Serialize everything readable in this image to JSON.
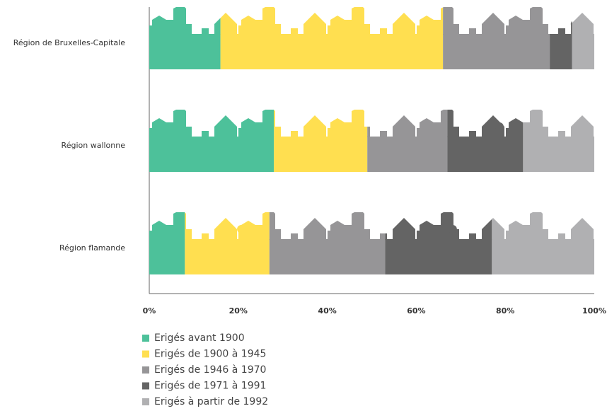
{
  "chart_data": {
    "type": "stacked-bar-horizontal",
    "categories": [
      "Région de Bruxelles-Capitale",
      "Région wallonne",
      "Région flamande"
    ],
    "series": [
      {
        "name": "Erigés avant 1900",
        "color": "#4dc19a",
        "values": [
          16,
          28,
          8
        ]
      },
      {
        "name": "Erigés de 1900 à 1945",
        "color": "#ffdf50",
        "values": [
          50,
          21,
          19
        ]
      },
      {
        "name": "Erigés de 1946 à 1970",
        "color": "#969597",
        "values": [
          24,
          18,
          26
        ]
      },
      {
        "name": "Erigés de 1971 à 1991",
        "color": "#646464",
        "values": [
          5,
          17,
          24
        ]
      },
      {
        "name": "Erigés à partir de 1992",
        "color": "#b0b0b2",
        "values": [
          5,
          16,
          23
        ]
      }
    ],
    "xlim": [
      0,
      100
    ],
    "xticks": [
      {
        "value": 0,
        "label": "0%"
      },
      {
        "value": 20,
        "label": "20%"
      },
      {
        "value": 40,
        "label": "40%"
      },
      {
        "value": 60,
        "label": "60%"
      },
      {
        "value": 80,
        "label": "80%"
      },
      {
        "value": 100,
        "label": "100%"
      }
    ]
  }
}
